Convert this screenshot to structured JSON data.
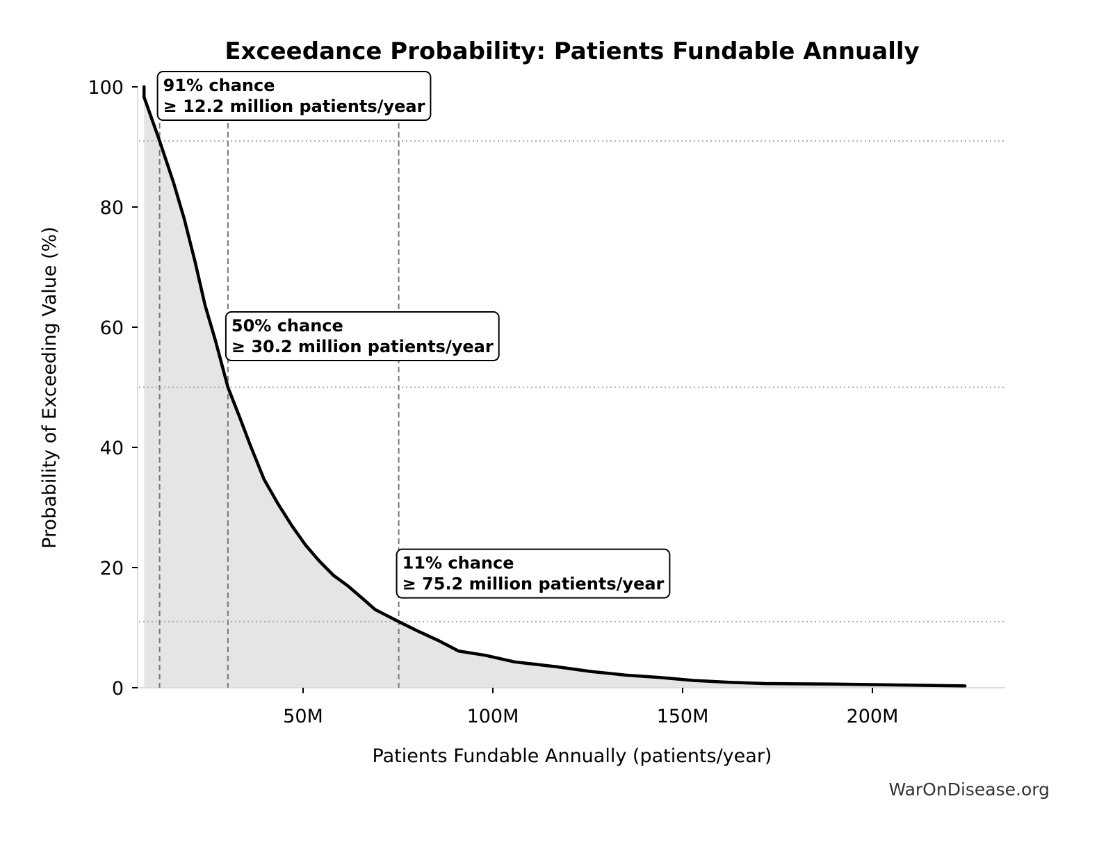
{
  "chart_data": {
    "type": "area",
    "title": "Exceedance Probability: Patients Fundable Annually",
    "xlabel": "Patients Fundable Annually (patients/year)",
    "ylabel": "Probability of Exceeding Value (%)",
    "xlim": [
      6.8,
      235
    ],
    "ylim": [
      0,
      100
    ],
    "x_unit": "million patients/year",
    "xticks": [
      {
        "value": 50,
        "label": "50M"
      },
      {
        "value": 100,
        "label": "100M"
      },
      {
        "value": 150,
        "label": "150M"
      },
      {
        "value": 200,
        "label": "200M"
      }
    ],
    "yticks": [
      {
        "value": 0,
        "label": "0"
      },
      {
        "value": 20,
        "label": "20"
      },
      {
        "value": 40,
        "label": "40"
      },
      {
        "value": 60,
        "label": "60"
      },
      {
        "value": 80,
        "label": "80"
      },
      {
        "value": 100,
        "label": "100"
      }
    ],
    "grid": false,
    "colors": {
      "line": "#000000",
      "fill": "#e5e5e5",
      "reference": "#777777",
      "spine": "#dddddd"
    },
    "series": [
      {
        "x": [
          8.1,
          8.1,
          12.2,
          15.9,
          18.7,
          21.5,
          24.2,
          26.9,
          30.2,
          33.3,
          36,
          39.7,
          43.4,
          47,
          50.7,
          54.4,
          58,
          61.7,
          65.4,
          69,
          75.2,
          80,
          85.5,
          91,
          98,
          105.7,
          116.7,
          125.8,
          135,
          144,
          153,
          162.5,
          171.6,
          190,
          208,
          224.4
        ],
        "y": [
          100,
          98.3,
          91,
          84,
          78,
          71,
          63.6,
          57.8,
          50,
          45,
          40.5,
          34.7,
          30.6,
          27,
          23.7,
          21,
          18.7,
          17,
          15,
          13,
          11,
          9.5,
          7.9,
          6.1,
          5.4,
          4.3,
          3.5,
          2.7,
          2.1,
          1.7,
          1.2,
          0.9,
          0.7,
          0.6,
          0.45,
          0.3
        ]
      }
    ],
    "annotations": [
      {
        "x": 12.2,
        "y": 91,
        "line1": "91% chance",
        "line2": "≥ 12.2 million patients/year",
        "box_x": 12.2,
        "box_y": 100
      },
      {
        "x": 30.2,
        "y": 50,
        "line1": "50% chance",
        "line2": "≥ 30.2 million patients/year",
        "box_x": 30.2,
        "box_y": 60
      },
      {
        "x": 75.2,
        "y": 11,
        "line1": "11% chance",
        "line2": "≥ 75.2 million patients/year",
        "box_x": 75.2,
        "box_y": 20.5
      }
    ]
  },
  "watermark": "WarOnDisease.org"
}
